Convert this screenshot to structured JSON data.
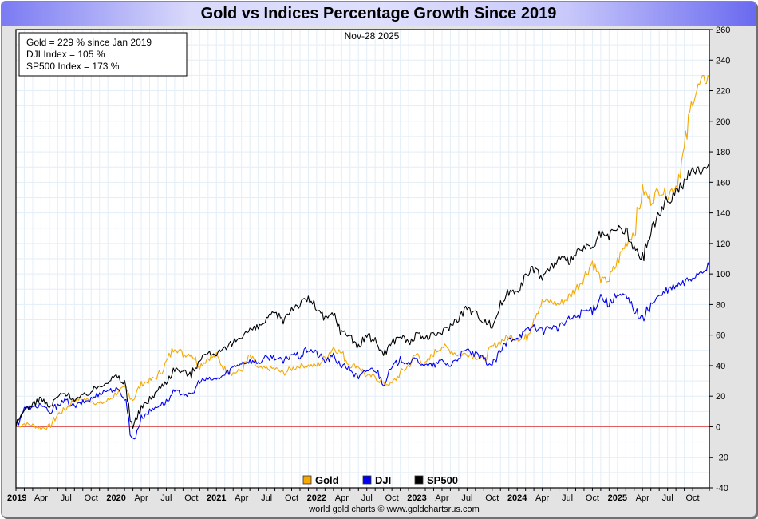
{
  "chart_data": {
    "type": "line",
    "title": "Gold vs Indices Percentage Growth Since 2019",
    "date_label": "Nov-28  2025",
    "info_box": [
      "Gold = 229 % since Jan 2019",
      "DJI Index = 105 %",
      "SP500 Index = 173 %"
    ],
    "footer": "world gold charts © www.goldchartsrus.com",
    "xlabel": "",
    "ylabel": "",
    "ylim": [
      -40,
      260
    ],
    "yticks": [
      260,
      240,
      220,
      200,
      180,
      160,
      140,
      120,
      100,
      80,
      60,
      40,
      20,
      0,
      -20,
      -40
    ],
    "xlim_months": [
      0,
      83
    ],
    "x_tick_labels": [
      {
        "month": 0,
        "label": "2019",
        "year": true
      },
      {
        "month": 3,
        "label": "Apr",
        "year": false
      },
      {
        "month": 6,
        "label": "Jul",
        "year": false
      },
      {
        "month": 9,
        "label": "Oct",
        "year": false
      },
      {
        "month": 12,
        "label": "2020",
        "year": true
      },
      {
        "month": 15,
        "label": "Apr",
        "year": false
      },
      {
        "month": 18,
        "label": "Jul",
        "year": false
      },
      {
        "month": 21,
        "label": "Oct",
        "year": false
      },
      {
        "month": 24,
        "label": "2021",
        "year": true
      },
      {
        "month": 27,
        "label": "Apr",
        "year": false
      },
      {
        "month": 30,
        "label": "Jul",
        "year": false
      },
      {
        "month": 33,
        "label": "Oct",
        "year": false
      },
      {
        "month": 36,
        "label": "2022",
        "year": true
      },
      {
        "month": 39,
        "label": "Apr",
        "year": false
      },
      {
        "month": 42,
        "label": "Jul",
        "year": false
      },
      {
        "month": 45,
        "label": "Oct",
        "year": false
      },
      {
        "month": 48,
        "label": "2023",
        "year": true
      },
      {
        "month": 51,
        "label": "Apr",
        "year": false
      },
      {
        "month": 54,
        "label": "Jul",
        "year": false
      },
      {
        "month": 57,
        "label": "Oct",
        "year": false
      },
      {
        "month": 60,
        "label": "2024",
        "year": true
      },
      {
        "month": 63,
        "label": "Apr",
        "year": false
      },
      {
        "month": 66,
        "label": "Jul",
        "year": false
      },
      {
        "month": 69,
        "label": "Oct",
        "year": false
      },
      {
        "month": 72,
        "label": "2025",
        "year": true
      },
      {
        "month": 75,
        "label": "Apr",
        "year": false
      },
      {
        "month": 78,
        "label": "Jul",
        "year": false
      },
      {
        "month": 81,
        "label": "Oct",
        "year": false
      }
    ],
    "reference_line": {
      "value": 0,
      "color": "#e06060"
    },
    "grid": true,
    "legend_position": "bottom-center",
    "series": [
      {
        "name": "Gold",
        "color": "#f5a800",
        "values": [
          0,
          2,
          1,
          -1,
          0,
          8,
          12,
          18,
          18,
          17,
          15,
          17,
          22,
          25,
          18,
          28,
          30,
          33,
          42,
          53,
          47,
          48,
          40,
          45,
          46,
          38,
          35,
          37,
          46,
          38,
          38,
          38,
          35,
          38,
          40,
          40,
          40,
          45,
          52,
          48,
          40,
          40,
          33,
          33,
          28,
          28,
          35,
          40,
          48,
          40,
          48,
          53,
          50,
          47,
          48,
          46,
          44,
          52,
          56,
          59,
          58,
          57,
          72,
          82,
          82,
          80,
          84,
          90,
          98,
          108,
          96,
          96,
          108,
          120,
          128,
          155,
          148,
          155,
          152,
          158,
          180,
          215,
          225,
          229
        ]
      },
      {
        "name": "DJI",
        "color": "#0000ee",
        "values": [
          0,
          12,
          12,
          15,
          8,
          15,
          17,
          13,
          16,
          18,
          22,
          24,
          24,
          20,
          -10,
          6,
          10,
          14,
          16,
          23,
          22,
          20,
          30,
          31,
          31,
          34,
          39,
          42,
          43,
          42,
          45,
          46,
          42,
          48,
          46,
          51,
          48,
          43,
          46,
          40,
          38,
          31,
          37,
          38,
          29,
          38,
          44,
          42,
          44,
          40,
          40,
          43,
          40,
          46,
          50,
          47,
          44,
          40,
          49,
          57,
          59,
          62,
          66,
          62,
          66,
          64,
          70,
          72,
          76,
          76,
          86,
          80,
          86,
          85,
          77,
          70,
          80,
          85,
          89,
          92,
          94,
          98,
          102,
          105
        ]
      },
      {
        "name": "SP500",
        "color": "#000000",
        "values": [
          0,
          12,
          14,
          19,
          12,
          20,
          22,
          18,
          20,
          23,
          27,
          30,
          33,
          28,
          0,
          12,
          18,
          24,
          30,
          38,
          36,
          34,
          45,
          48,
          48,
          50,
          55,
          60,
          63,
          65,
          70,
          74,
          70,
          78,
          80,
          84,
          78,
          70,
          74,
          62,
          60,
          52,
          60,
          56,
          48,
          55,
          60,
          55,
          60,
          58,
          60,
          62,
          66,
          72,
          78,
          74,
          70,
          66,
          80,
          88,
          90,
          98,
          104,
          98,
          104,
          110,
          108,
          112,
          118,
          116,
          126,
          124,
          130,
          128,
          116,
          110,
          128,
          140,
          148,
          154,
          160,
          168,
          168,
          173
        ]
      }
    ]
  }
}
